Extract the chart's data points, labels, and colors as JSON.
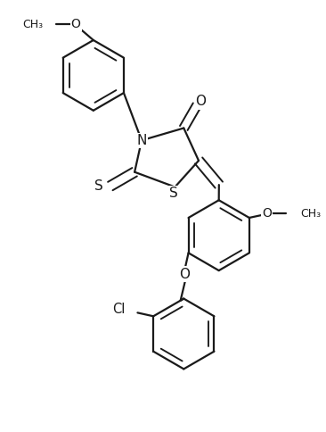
{
  "bg_color": "#ffffff",
  "line_color": "#1a1a1a",
  "lw": 1.6,
  "fs": 9.5,
  "figsize": [
    3.66,
    4.84
  ],
  "dpi": 100,
  "xlim": [
    0,
    3.66
  ],
  "ylim": [
    0,
    4.84
  ]
}
